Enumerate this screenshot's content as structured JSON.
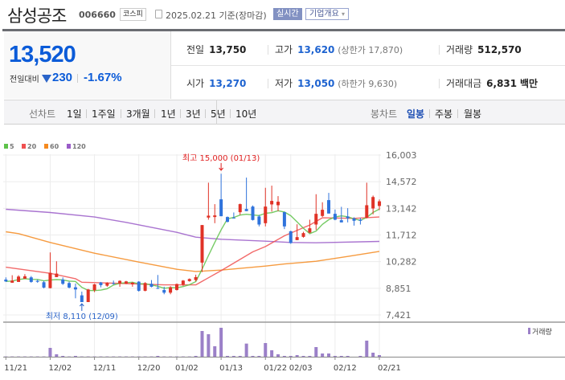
{
  "header": {
    "title": "삼성공조",
    "code": "006660",
    "market": "코스피",
    "date": "2025.02.21 기준(장마감)",
    "realtime": "실시간",
    "company_button": "기업개요",
    "company_caret": "▾"
  },
  "price": {
    "current": "13,520",
    "compare_label": "전일대비",
    "change": "230",
    "rate": "-1.67%",
    "direction": "down",
    "color": "#0b5bd8"
  },
  "stats": {
    "row1": [
      {
        "label": "전일",
        "value": "13,750"
      },
      {
        "label": "고가",
        "value": "13,620",
        "extra": "(상한가 17,870)"
      },
      {
        "label": "거래량",
        "value": "512,570"
      }
    ],
    "row2": [
      {
        "label": "시가",
        "value": "13,270"
      },
      {
        "label": "저가",
        "value": "13,050",
        "extra": "(하한가 9,630)"
      },
      {
        "label": "거래대금",
        "value": "6,831",
        "unit": "백만"
      }
    ]
  },
  "tabs": {
    "line_label": "선차트",
    "line": [
      "1일",
      "1주일",
      "3개월",
      "1년",
      "3년",
      "5년",
      "10년"
    ],
    "candle_label": "봉차트",
    "candle": [
      "일봉",
      "주봉",
      "월봉"
    ],
    "active_candle": "일봉"
  },
  "chart_data": {
    "type": "candlestick",
    "legend": [
      {
        "name": "5",
        "color": "#5ec24a"
      },
      {
        "name": "20",
        "color": "#f05050"
      },
      {
        "name": "60",
        "color": "#f58a1f"
      },
      {
        "name": "120",
        "color": "#9a5cc8"
      }
    ],
    "up_color": "#e03226",
    "down_color": "#2f73dc",
    "ylim": [
      7421,
      16003
    ],
    "y_ticks": [
      "16,003",
      "14,572",
      "13,142",
      "11,712",
      "10,282",
      "8,851",
      "7,421"
    ],
    "y_tick_values": [
      16003,
      14572,
      13142,
      11712,
      10282,
      8851,
      7421
    ],
    "x_labels": [
      {
        "i": 0,
        "t": "11/21"
      },
      {
        "i": 7,
        "t": "12/02"
      },
      {
        "i": 14,
        "t": "12/11"
      },
      {
        "i": 21,
        "t": "12/20"
      },
      {
        "i": 27,
        "t": "01/02"
      },
      {
        "i": 34,
        "t": "01/13"
      },
      {
        "i": 41,
        "t": "01/22"
      },
      {
        "i": 45,
        "t": "02/03"
      },
      {
        "i": 52,
        "t": "02/12"
      },
      {
        "i": 59,
        "t": "02/21"
      }
    ],
    "ohlc": [
      [
        9320,
        9437,
        9192,
        9220
      ],
      [
        9149,
        9552,
        9149,
        9264
      ],
      [
        9192,
        9552,
        9192,
        9480
      ],
      [
        9365,
        9610,
        9365,
        9494
      ],
      [
        9437,
        9509,
        9149,
        9192
      ],
      [
        9250,
        9321,
        9149,
        9200
      ],
      [
        9177,
        9250,
        8846,
        8890
      ],
      [
        8861,
        10776,
        8846,
        9682
      ],
      [
        9451,
        10301,
        9451,
        9638
      ],
      [
        9321,
        9437,
        9033,
        9091
      ],
      [
        9134,
        9206,
        8846,
        8890
      ],
      [
        8904,
        9105,
        8314,
        8789
      ],
      [
        8472,
        8673,
        8110,
        8112
      ],
      [
        8112,
        8817,
        8112,
        8789
      ],
      [
        8746,
        9091,
        8645,
        9062
      ],
      [
        9163,
        9192,
        8904,
        9019
      ],
      [
        8990,
        9177,
        8933,
        9149
      ],
      [
        9130,
        9264,
        9048,
        9110
      ],
      [
        9105,
        9278,
        8933,
        9250
      ],
      [
        9105,
        9250,
        9077,
        9221
      ],
      [
        9062,
        9192,
        8933,
        9149
      ],
      [
        9206,
        9235,
        8673,
        8717
      ],
      [
        8717,
        9177,
        8688,
        9134
      ],
      [
        9091,
        9293,
        8904,
        8933
      ],
      [
        8870,
        9566,
        8817,
        8860
      ],
      [
        8760,
        8933,
        8530,
        8616
      ],
      [
        8616,
        8962,
        8530,
        8904
      ],
      [
        8760,
        9105,
        8731,
        9077
      ],
      [
        9048,
        9293,
        8976,
        9264
      ],
      [
        9235,
        9379,
        9206,
        9350
      ],
      [
        9293,
        9581,
        9221,
        9451
      ],
      [
        10229,
        12245,
        9725,
        12245
      ],
      [
        12648,
        14520,
        12533,
        12749
      ],
      [
        12677,
        13368,
        12345,
        12763
      ],
      [
        13627,
        15000,
        12720,
        12720
      ],
      [
        12677,
        12706,
        12389,
        12417
      ],
      [
        12640,
        12921,
        12605,
        12630
      ],
      [
        12936,
        13397,
        12792,
        13368
      ],
      [
        13109,
        14793,
        12993,
        12993
      ],
      [
        13238,
        13296,
        12489,
        12518
      ],
      [
        12706,
        12792,
        12173,
        12273
      ],
      [
        12345,
        14246,
        12173,
        13238
      ],
      [
        13354,
        14361,
        12965,
        13541
      ],
      [
        13310,
        13800,
        12993,
        13498
      ],
      [
        12936,
        12965,
        12029,
        12173
      ],
      [
        11913,
        11942,
        11237,
        11280
      ],
      [
        11438,
        12288,
        11438,
        11597
      ],
      [
        11611,
        11885,
        11568,
        11813
      ],
      [
        11841,
        12533,
        11813,
        12072
      ],
      [
        12273,
        13901,
        11985,
        12849
      ],
      [
        12734,
        13469,
        12677,
        13066
      ],
      [
        13584,
        13973,
        12864,
        12864
      ],
      [
        12849,
        13080,
        12504,
        12533
      ],
      [
        12504,
        13224,
        12389,
        12389
      ],
      [
        12706,
        13152,
        12389,
        12605
      ],
      [
        12605,
        12662,
        12216,
        12475
      ],
      [
        12533,
        12634,
        12273,
        12475
      ],
      [
        12634,
        14520,
        12605,
        13310
      ],
      [
        13137,
        13829,
        12821,
        13750
      ],
      [
        13270,
        13620,
        13050,
        13520
      ]
    ],
    "volume_relative": [
      1,
      1,
      1,
      1,
      1,
      1,
      1,
      33,
      9,
      3,
      1,
      3,
      1,
      1,
      1,
      1,
      1,
      1,
      1,
      1,
      1,
      1,
      1,
      1,
      3,
      1,
      1,
      1,
      1,
      1,
      3,
      96,
      84,
      39,
      108,
      3,
      3,
      3,
      49,
      3,
      3,
      51,
      24,
      9,
      3,
      3,
      6,
      3,
      3,
      36,
      12,
      12,
      3,
      3,
      3,
      0,
      3,
      60,
      15,
      6
    ],
    "ma20": [
      [
        0,
        9984
      ],
      [
        7,
        9653
      ],
      [
        11,
        9365
      ],
      [
        12,
        9177
      ],
      [
        19,
        9105
      ],
      [
        25,
        9033
      ],
      [
        30,
        9033
      ],
      [
        34,
        9797
      ],
      [
        39,
        10805
      ],
      [
        41,
        11093
      ],
      [
        44,
        11669
      ],
      [
        48,
        12245
      ],
      [
        50,
        12634
      ],
      [
        55,
        12605
      ],
      [
        59,
        12677
      ]
    ],
    "ma60": [
      [
        0,
        11885
      ],
      [
        2,
        11784
      ],
      [
        7,
        11309
      ],
      [
        14,
        10733
      ],
      [
        21,
        10258
      ],
      [
        27,
        9869
      ],
      [
        30,
        9754
      ],
      [
        34,
        9826
      ],
      [
        41,
        10042
      ],
      [
        44,
        10157
      ],
      [
        49,
        10301
      ],
      [
        54,
        10560
      ],
      [
        59,
        10834
      ]
    ],
    "ma120": [
      [
        0,
        13094
      ],
      [
        7,
        12921
      ],
      [
        14,
        12677
      ],
      [
        19,
        12389
      ],
      [
        27,
        11856
      ],
      [
        30,
        11597
      ],
      [
        34,
        11482
      ],
      [
        41,
        11381
      ],
      [
        45,
        11309
      ],
      [
        49,
        11294
      ],
      [
        59,
        11366
      ]
    ],
    "high_annotation": {
      "text": "최고 15,000 (01/13)",
      "i": 34,
      "value": 15000
    },
    "low_annotation": {
      "text": "최저 8,110 (12/09)",
      "i": 12,
      "value": 8110
    },
    "volume_label": "거래량"
  }
}
